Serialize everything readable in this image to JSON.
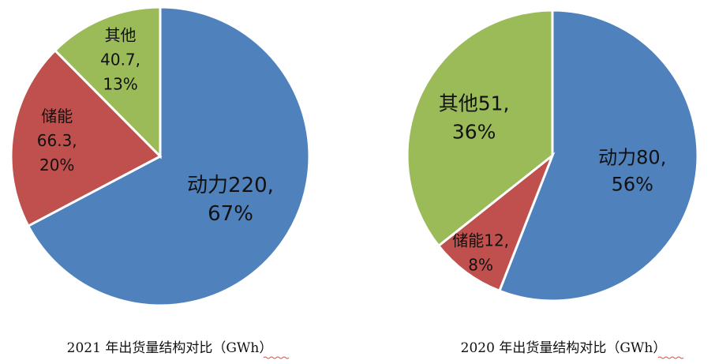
{
  "chart_data": [
    {
      "type": "pie",
      "title": "2021 年出货量结构对比（GWh）",
      "slices": [
        {
          "name": "动力",
          "value": 220,
          "percent": "67%",
          "label_line1": "动力220,",
          "label_line2": "67%",
          "color": "#4f81bd"
        },
        {
          "name": "储能",
          "value": 66.3,
          "percent": "20%",
          "label_line1": "储能",
          "label_line2": "66.3,",
          "label_line3": "20%",
          "color": "#c0504d"
        },
        {
          "name": "其他",
          "value": 40.7,
          "percent": "13%",
          "label_line1": "其他",
          "label_line2": "40.7,",
          "label_line3": "13%",
          "color": "#9bbb59"
        }
      ]
    },
    {
      "type": "pie",
      "title": "2020 年出货量结构对比（GWh）",
      "slices": [
        {
          "name": "动力",
          "value": 80,
          "percent": "56%",
          "label_line1": "动力80,",
          "label_line2": "56%",
          "color": "#4f81bd"
        },
        {
          "name": "储能",
          "value": 12,
          "percent": "8%",
          "label_line1": "储能12,",
          "label_line2": "8%",
          "color": "#c0504d"
        },
        {
          "name": "其他",
          "value": 51,
          "percent": "36%",
          "label_line1": "其他51,",
          "label_line2": "36%",
          "color": "#9bbb59"
        }
      ]
    }
  ]
}
